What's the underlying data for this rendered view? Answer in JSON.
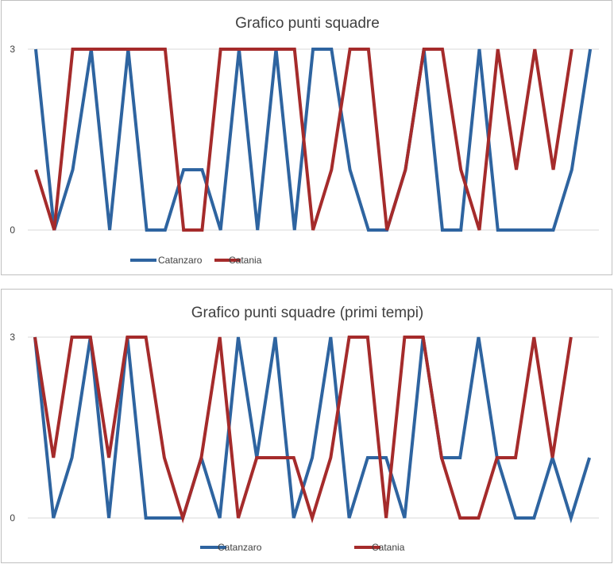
{
  "chart_data": [
    {
      "type": "line",
      "title": "Grafico punti squadre",
      "xlabel": "",
      "ylabel": "",
      "ylim": [
        0,
        3
      ],
      "yticks": [
        0,
        3
      ],
      "grid": true,
      "legend_position": "bottom-left",
      "series": [
        {
          "name": "Catanzaro",
          "color": "#2e64a0",
          "values": [
            3,
            0,
            1,
            3,
            0,
            3,
            0,
            0,
            1,
            1,
            0,
            3,
            0,
            3,
            0,
            3,
            3,
            1,
            0,
            0,
            1,
            3,
            0,
            0,
            3,
            0,
            0,
            0,
            0,
            1,
            3
          ]
        },
        {
          "name": "Catania",
          "color": "#a52b2b",
          "values": [
            1,
            0,
            3,
            3,
            3,
            3,
            3,
            3,
            0,
            0,
            3,
            3,
            3,
            3,
            3,
            0,
            1,
            3,
            3,
            0,
            1,
            3,
            3,
            1,
            0,
            3,
            1,
            3,
            1,
            3
          ]
        }
      ]
    },
    {
      "type": "line",
      "title": "Grafico punti squadre (primi tempi)",
      "xlabel": "",
      "ylabel": "",
      "ylim": [
        0,
        3
      ],
      "yticks": [
        0,
        3
      ],
      "grid": true,
      "legend_position": "bottom-center",
      "series": [
        {
          "name": "Catanzaro",
          "color": "#2e64a0",
          "values": [
            3,
            0,
            1,
            3,
            0,
            3,
            0,
            0,
            0,
            1,
            0,
            3,
            1,
            3,
            0,
            1,
            3,
            0,
            1,
            1,
            0,
            3,
            1,
            1,
            3,
            1,
            0,
            0,
            1,
            0,
            1
          ]
        },
        {
          "name": "Catania",
          "color": "#a52b2b",
          "values": [
            3,
            1,
            3,
            3,
            1,
            3,
            3,
            1,
            0,
            1,
            3,
            0,
            1,
            1,
            1,
            0,
            1,
            3,
            3,
            0,
            3,
            3,
            1,
            0,
            0,
            1,
            1,
            3,
            1,
            3
          ]
        }
      ]
    }
  ]
}
